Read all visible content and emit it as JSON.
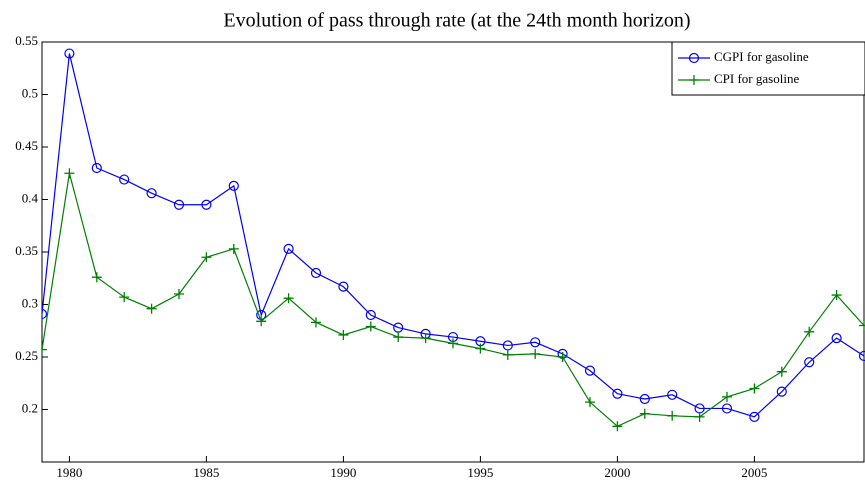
{
  "chart_data": {
    "type": "line",
    "title": "Evolution of pass through rate (at the 24th month horizon)",
    "x": [
      1979,
      1980,
      1981,
      1982,
      1983,
      1984,
      1985,
      1986,
      1987,
      1988,
      1989,
      1990,
      1991,
      1992,
      1993,
      1994,
      1995,
      1996,
      1997,
      1998,
      1999,
      2000,
      2001,
      2002,
      2003,
      2004,
      2005,
      2006,
      2007,
      2008,
      2009
    ],
    "series": [
      {
        "name": "CGPI for gasoline",
        "color": "#0000ff",
        "marker": "circle",
        "values": [
          0.291,
          0.539,
          0.43,
          0.419,
          0.406,
          0.395,
          0.395,
          0.413,
          0.29,
          0.353,
          0.33,
          0.317,
          0.29,
          0.278,
          0.272,
          0.269,
          0.265,
          0.261,
          0.264,
          0.253,
          0.237,
          0.215,
          0.21,
          0.214,
          0.201,
          0.201,
          0.193,
          0.217,
          0.245,
          0.268,
          0.251
        ]
      },
      {
        "name": "CPI for gasoline",
        "color": "#008000",
        "marker": "plus",
        "values": [
          0.257,
          0.425,
          0.326,
          0.307,
          0.296,
          0.31,
          0.345,
          0.353,
          0.284,
          0.306,
          0.283,
          0.271,
          0.279,
          0.269,
          0.268,
          0.263,
          0.258,
          0.252,
          0.253,
          0.25,
          0.207,
          0.184,
          0.196,
          0.194,
          0.193,
          0.212,
          0.22,
          0.236,
          0.274,
          0.309,
          0.28
        ]
      }
    ],
    "xlim": [
      1979,
      2009
    ],
    "xticks": [
      1980,
      1985,
      1990,
      1995,
      2000,
      2005
    ],
    "ylim": [
      0.15,
      0.55
    ],
    "yticks": [
      0.2,
      0.25,
      0.3,
      0.35,
      0.4,
      0.45,
      0.5,
      0.55
    ],
    "grid": false,
    "legend": "northeast"
  }
}
